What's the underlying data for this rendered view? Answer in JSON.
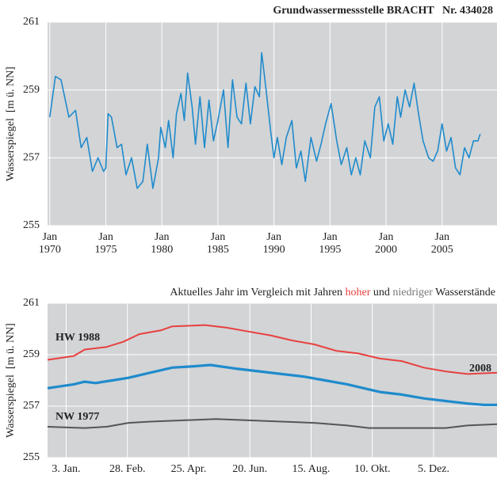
{
  "chart_data": [
    {
      "type": "line",
      "title": "Grundwassermessstelle BRACHT   Nr. 434028",
      "y_label": "Wasserspiegel  [m ü. NN]",
      "xlim": [
        1969.8,
        2009.9
      ],
      "ylim": [
        255,
        261
      ],
      "xticks": [
        {
          "value": 1970,
          "label": [
            "Jan",
            "1970"
          ]
        },
        {
          "value": 1975,
          "label": [
            "Jan",
            "1975"
          ]
        },
        {
          "value": 1980,
          "label": [
            "Jan",
            "1980"
          ]
        },
        {
          "value": 1985,
          "label": [
            "Jan",
            "1985"
          ]
        },
        {
          "value": 1990,
          "label": [
            "Jan",
            "1990"
          ]
        },
        {
          "value": 1995,
          "label": [
            "Jan",
            "1995"
          ]
        },
        {
          "value": 2000,
          "label": [
            "Jan",
            "2000"
          ]
        },
        {
          "value": 2005,
          "label": [
            "Jan",
            "2005"
          ]
        }
      ],
      "yticks": [
        255,
        257,
        259,
        261
      ],
      "grid": true,
      "series": [
        {
          "color": "#1f8bcc",
          "x": [
            1970.0,
            1970.5,
            1971.0,
            1971.7,
            1972.3,
            1972.8,
            1973.3,
            1973.8,
            1974.3,
            1974.8,
            1975.0,
            1975.2,
            1975.5,
            1976.0,
            1976.4,
            1976.8,
            1977.3,
            1977.8,
            1978.3,
            1978.7,
            1979.2,
            1979.7,
            1979.9,
            1980.3,
            1980.6,
            1981.0,
            1981.3,
            1981.7,
            1982.0,
            1982.3,
            1982.7,
            1983.0,
            1983.4,
            1983.8,
            1984.2,
            1984.6,
            1985.0,
            1985.5,
            1985.9,
            1986.3,
            1986.7,
            1987.1,
            1987.5,
            1987.9,
            1988.3,
            1988.7,
            1988.9,
            1989.3,
            1989.7,
            1990.0,
            1990.3,
            1990.7,
            1991.1,
            1991.6,
            1992.0,
            1992.4,
            1992.8,
            1993.3,
            1993.8,
            1994.2,
            1994.6,
            1995.1,
            1995.6,
            1996.0,
            1996.5,
            1996.9,
            1997.3,
            1997.7,
            1998.1,
            1998.6,
            1999.0,
            1999.4,
            1999.8,
            2000.2,
            2000.6,
            2001.0,
            2001.3,
            2001.7,
            2002.1,
            2002.5,
            2002.9,
            2003.3,
            2003.8,
            2004.2,
            2004.6,
            2005.0,
            2005.4,
            2005.8,
            2006.2,
            2006.6,
            2007.0,
            2007.4,
            2007.8,
            2008.2,
            2008.4
          ],
          "values": [
            258.2,
            259.4,
            259.3,
            258.2,
            258.4,
            257.3,
            257.6,
            256.6,
            257.0,
            256.6,
            256.7,
            258.3,
            258.2,
            257.3,
            257.4,
            256.5,
            257.0,
            256.1,
            256.3,
            257.4,
            256.1,
            257.0,
            257.9,
            257.3,
            258.1,
            257.0,
            258.3,
            258.9,
            258.1,
            259.5,
            258.5,
            257.4,
            258.8,
            257.3,
            258.7,
            257.5,
            258.1,
            259.0,
            257.3,
            259.3,
            258.2,
            258.0,
            259.2,
            258.0,
            259.1,
            258.8,
            260.1,
            259.0,
            257.8,
            257.0,
            257.6,
            256.8,
            257.6,
            258.1,
            256.7,
            257.2,
            256.3,
            257.6,
            256.9,
            257.4,
            258.0,
            258.6,
            257.5,
            256.8,
            257.3,
            256.5,
            257.0,
            256.5,
            257.5,
            257.0,
            258.5,
            258.8,
            257.5,
            258.0,
            257.4,
            258.8,
            258.2,
            259.0,
            258.5,
            259.2,
            258.3,
            257.5,
            257.0,
            256.9,
            257.2,
            258.0,
            257.2,
            257.6,
            256.7,
            256.5,
            257.3,
            257.0,
            257.5,
            257.5,
            257.7
          ]
        }
      ]
    },
    {
      "type": "line",
      "subtitle": [
        "Aktuelles Jahr im Vergleich mit Jahren ",
        "hoher",
        " und ",
        "niedriger",
        " Wasserstände"
      ],
      "y_label": "Wasserspiegel  [m ü. NN]",
      "xlim": [
        -14,
        397
      ],
      "ylim": [
        255,
        261
      ],
      "xticks": [
        {
          "value": 3,
          "label": "3. Jan."
        },
        {
          "value": 59,
          "label": "28. Feb."
        },
        {
          "value": 115,
          "label": "25. Apr."
        },
        {
          "value": 171,
          "label": "20. Jun."
        },
        {
          "value": 227,
          "label": "15. Aug."
        },
        {
          "value": 283,
          "label": "10. Okt."
        },
        {
          "value": 339,
          "label": "5. Dez."
        }
      ],
      "yticks": [
        255,
        257,
        259,
        261
      ],
      "grid": true,
      "series": [
        {
          "name": "HW 1988",
          "color": "#e8403e",
          "x": [
            -14,
            10,
            20,
            40,
            55,
            70,
            90,
            100,
            130,
            150,
            170,
            190,
            210,
            230,
            250,
            270,
            290,
            310,
            330,
            350,
            370,
            397
          ],
          "values": [
            258.8,
            258.95,
            259.2,
            259.3,
            259.5,
            259.8,
            259.95,
            260.1,
            260.15,
            260.05,
            259.9,
            259.75,
            259.55,
            259.4,
            259.15,
            259.05,
            258.85,
            258.75,
            258.5,
            258.35,
            258.25,
            258.3
          ]
        },
        {
          "name": "2008",
          "color": "#1f8bcc",
          "x": [
            -14,
            10,
            20,
            30,
            45,
            60,
            80,
            100,
            120,
            135,
            160,
            180,
            200,
            220,
            240,
            260,
            275,
            290,
            310,
            330,
            350,
            370,
            385,
            397
          ],
          "values": [
            257.7,
            257.85,
            257.95,
            257.9,
            258.0,
            258.1,
            258.3,
            258.5,
            258.55,
            258.6,
            258.45,
            258.35,
            258.25,
            258.15,
            258.0,
            257.85,
            257.7,
            257.55,
            257.45,
            257.3,
            257.2,
            257.1,
            257.05,
            257.05
          ]
        },
        {
          "name": "NW 1977",
          "color": "#555555",
          "x": [
            -14,
            20,
            40,
            60,
            80,
            110,
            140,
            170,
            200,
            230,
            260,
            280,
            320,
            350,
            370,
            397
          ],
          "values": [
            256.2,
            256.15,
            256.2,
            256.35,
            256.4,
            256.45,
            256.5,
            256.45,
            256.4,
            256.35,
            256.25,
            256.15,
            256.15,
            256.15,
            256.25,
            256.3
          ]
        }
      ]
    }
  ]
}
